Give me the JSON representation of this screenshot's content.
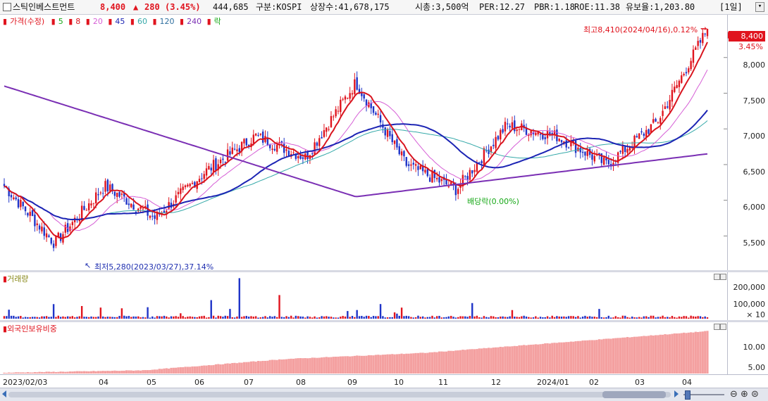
{
  "header": {
    "name": "스틱인베스트먼트",
    "price": "8,400",
    "arrow": "▲",
    "change": "280",
    "change_pct": "(3.45%)",
    "volume": "444,685",
    "market": "구분:KOSPI",
    "shares": "상장수:41,678,175",
    "mcap": "시총:3,500억",
    "per": "PER:12.27",
    "pbr": "PBR:1.18",
    "roe": "ROE:11.38",
    "float": "유보율:1,203.80",
    "period": "[1일]"
  },
  "price_panel": {
    "legend": {
      "price": "가격(수정)",
      "ma5": "5",
      "ma8": "8",
      "ma20": "20",
      "ma45": "45",
      "ma60": "60",
      "ma120": "120",
      "ma240": "240",
      "rak": "락"
    },
    "yaxis": [
      "8,000",
      "7,500",
      "7,000",
      "6,500",
      "6,000",
      "5,500"
    ],
    "current_price_tag": "8,400",
    "current_pct_tag": "3.45%",
    "high_annotation": "최고8,410(2024/04/16),0.12%",
    "low_annotation": "최저5,280(2023/03/27),37.14%",
    "dividend_annotation": "배당락(0.00%)"
  },
  "volume_panel": {
    "title": "거래량",
    "yaxis": [
      "200,000",
      "100,000"
    ],
    "multiplier": "× 10"
  },
  "foreign_panel": {
    "title": "외국인보유비중",
    "yaxis": [
      "10.00",
      "5.00"
    ]
  },
  "xaxis": [
    "2023/02/03",
    "04",
    "05",
    "06",
    "07",
    "08",
    "09",
    "10",
    "11",
    "12",
    "2024/01",
    "02",
    "03",
    "04"
  ],
  "colors": {
    "up": "#e0141e",
    "down": "#1f34c8",
    "ma5": "#17a817",
    "ma8": "#d9141e",
    "ma20": "#d65fd6",
    "ma45": "#1c24b4",
    "ma60": "#35a9a9",
    "ma120": "#2f6f9f",
    "ma240": "#7a2fb4",
    "foreign_bar": "#f4a0a0"
  },
  "chart_data": {
    "type": "line",
    "price_range": [
      5100,
      8500
    ],
    "price_anchors": [
      {
        "month": "2023/02",
        "price": 6200
      },
      {
        "month": "2023/03",
        "price": 5400
      },
      {
        "month": "2023/04",
        "price": 6200
      },
      {
        "month": "2023/05",
        "price": 5750
      },
      {
        "month": "2023/06",
        "price": 6400
      },
      {
        "month": "2023/07",
        "price": 6900
      },
      {
        "month": "2023/08",
        "price": 6600
      },
      {
        "month": "2023/09",
        "price": 7650
      },
      {
        "month": "2023/10",
        "price": 6500
      },
      {
        "month": "2023/11",
        "price": 6150
      },
      {
        "month": "2023/12",
        "price": 7050
      },
      {
        "month": "2024/01",
        "price": 6900
      },
      {
        "month": "2024/02",
        "price": 6500
      },
      {
        "month": "2024/03",
        "price": 7100
      },
      {
        "month": "2024/04",
        "price": 8400
      }
    ],
    "high": {
      "date": "2024/04/16",
      "price": 8410
    },
    "low": {
      "date": "2023/03/27",
      "price": 5280
    },
    "volume_range": [
      0,
      2500000
    ],
    "foreign_ratio_range": [
      3,
      14
    ],
    "foreign_ratio_anchors": [
      {
        "month": "2023/02",
        "value": 3.2
      },
      {
        "month": "2023/06",
        "value": 3.8
      },
      {
        "month": "2023/08",
        "value": 6.5
      },
      {
        "month": "2023/10",
        "value": 8.0
      },
      {
        "month": "2024/01",
        "value": 10.6
      },
      {
        "month": "2024/04",
        "value": 13.2
      }
    ]
  }
}
